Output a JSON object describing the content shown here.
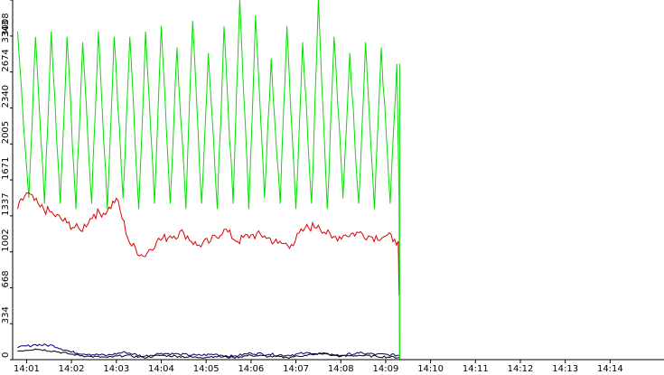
{
  "chart_data": {
    "type": "line",
    "title": "",
    "xlabel": "",
    "ylabel": "",
    "grid": false,
    "legend": "none",
    "ylim": [
      0,
      3343
    ],
    "y_ticks": [
      "0",
      "334",
      "668",
      "1002",
      "1337",
      "1671",
      "2005",
      "2340",
      "2674",
      "3008",
      "3343"
    ],
    "y_tick_values": [
      0,
      334,
      668,
      1002,
      1337,
      1671,
      2005,
      2340,
      2674,
      3008,
      3343
    ],
    "x_range_minutes": [
      0.69,
      15.2
    ],
    "x_ticks": [
      "14:01",
      "14:02",
      "14:03",
      "14:04",
      "14:05",
      "14:06",
      "14:07",
      "14:08",
      "14:09",
      "14:10",
      "14:11",
      "14:12",
      "14:13",
      "14:14"
    ],
    "x_tick_values": [
      1,
      2,
      3,
      4,
      5,
      6,
      7,
      8,
      9,
      10,
      11,
      12,
      13,
      14
    ],
    "data_end_minute": 9.3,
    "series": [
      {
        "color": "#00e000",
        "x": [
          0.8,
          1.05,
          1.2,
          1.4,
          1.55,
          1.75,
          1.9,
          2.1,
          2.25,
          2.45,
          2.6,
          2.8,
          2.95,
          3.15,
          3.3,
          3.5,
          3.65,
          3.85,
          4.0,
          4.2,
          4.35,
          4.55,
          4.7,
          4.9,
          5.05,
          5.25,
          5.4,
          5.6,
          5.75,
          5.95,
          6.1,
          6.3,
          6.45,
          6.65,
          6.8,
          7.0,
          7.15,
          7.35,
          7.5,
          7.7,
          7.85,
          8.05,
          8.2,
          8.4,
          8.55,
          8.75,
          8.9,
          9.1,
          9.25,
          9.3,
          9.31
        ],
        "values": [
          3050,
          1500,
          3000,
          1450,
          3050,
          1450,
          3000,
          1400,
          2950,
          1450,
          3050,
          1400,
          3000,
          1500,
          3000,
          1400,
          3050,
          1450,
          3100,
          1450,
          2900,
          1400,
          3150,
          1450,
          2850,
          1400,
          3100,
          1450,
          3350,
          1400,
          3200,
          1500,
          2800,
          1450,
          3100,
          1400,
          2950,
          1450,
          3350,
          1400,
          3000,
          1500,
          2850,
          1450,
          2950,
          1400,
          2900,
          1450,
          2750,
          1450,
          0
        ]
      },
      {
        "color": "#dd0000",
        "x": [
          0.8,
          1.0,
          1.3,
          1.6,
          1.9,
          2.2,
          2.5,
          2.8,
          3.0,
          3.3,
          3.6,
          3.9,
          4.2,
          4.5,
          4.8,
          5.1,
          5.4,
          5.7,
          6.0,
          6.3,
          6.6,
          6.9,
          7.2,
          7.5,
          7.8,
          8.1,
          8.4,
          8.7,
          9.0,
          9.2,
          9.28,
          9.3
        ],
        "values": [
          1400,
          1550,
          1420,
          1350,
          1270,
          1200,
          1350,
          1380,
          1500,
          1080,
          960,
          1100,
          1150,
          1180,
          1060,
          1100,
          1210,
          1100,
          1160,
          1150,
          1080,
          1070,
          1220,
          1250,
          1130,
          1160,
          1180,
          1140,
          1150,
          1120,
          1100,
          600
        ]
      },
      {
        "color": "#000080",
        "x": [
          0.8,
          1.2,
          1.6,
          2.0,
          2.4,
          2.8,
          3.2,
          3.6,
          4.0,
          4.4,
          4.8,
          5.2,
          5.6,
          6.0,
          6.4,
          6.8,
          7.2,
          7.6,
          8.0,
          8.4,
          8.8,
          9.3
        ],
        "values": [
          110,
          140,
          130,
          70,
          50,
          40,
          70,
          30,
          60,
          50,
          40,
          50,
          30,
          60,
          50,
          40,
          60,
          50,
          40,
          60,
          50,
          40
        ]
      },
      {
        "color": "#000000",
        "x": [
          0.8,
          1.2,
          1.6,
          2.0,
          2.4,
          2.8,
          3.2,
          3.6,
          4.0,
          4.4,
          4.8,
          5.2,
          5.6,
          6.0,
          6.4,
          6.8,
          7.2,
          7.6,
          8.0,
          8.4,
          8.8,
          9.3
        ],
        "values": [
          80,
          100,
          80,
          50,
          30,
          20,
          40,
          20,
          40,
          30,
          20,
          30,
          20,
          40,
          30,
          20,
          40,
          60,
          30,
          40,
          30,
          20
        ]
      }
    ]
  }
}
